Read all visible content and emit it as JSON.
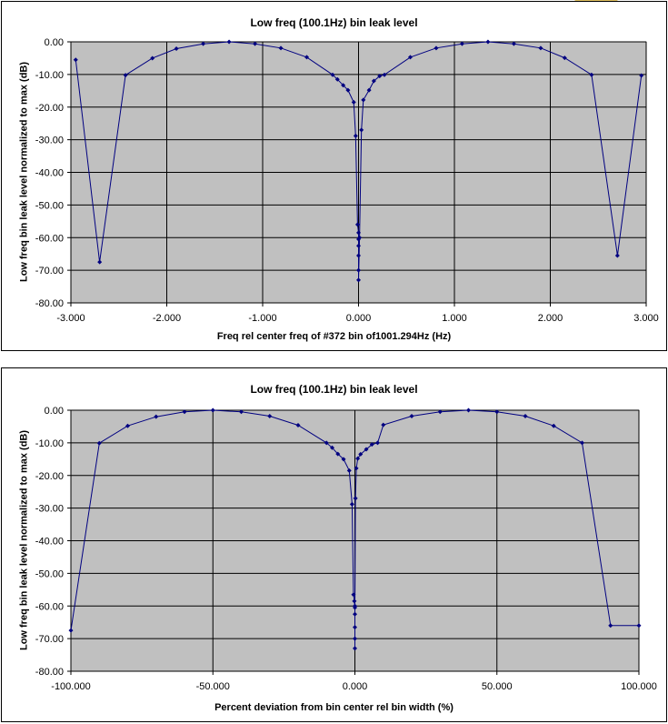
{
  "chart_data": [
    {
      "type": "line",
      "title": "Low freq (100.1Hz) bin leak level",
      "xlabel": "Freq rel center freq of #372 bin of1001.294Hz (Hz)",
      "ylabel": "Low freq bin leak level normalized to max (dB)",
      "xlim": [
        -3.0,
        3.0
      ],
      "ylim": [
        -80,
        0
      ],
      "xticks": [
        "-3.000",
        "-2.000",
        "-1.000",
        "0.000",
        "1.000",
        "2.000",
        "3.000"
      ],
      "yticks": [
        "0.00",
        "-10.00",
        "-20.00",
        "-30.00",
        "-40.00",
        "-50.00",
        "-60.00",
        "-70.00",
        "-80.00"
      ],
      "grid": true,
      "plot_background": "#c0c0c0",
      "line_color": "#000080",
      "series": [
        {
          "x": [
            -2.95,
            -2.7,
            -2.43,
            -2.15,
            -1.9,
            -1.62,
            -1.35,
            -1.08,
            -0.81,
            -0.54,
            -0.27,
            -0.22,
            -0.16,
            -0.11,
            -0.05,
            -0.03,
            -0.01,
            0.0,
            0.0,
            0.0,
            0.0,
            0.0,
            0.0,
            0.01,
            0.03,
            0.05,
            0.11,
            0.16,
            0.22,
            0.27,
            0.54,
            0.81,
            1.08,
            1.35,
            1.62,
            1.9,
            2.15,
            2.43,
            2.7,
            2.95
          ],
          "y": [
            -5.5,
            -67.5,
            -10.2,
            -5.0,
            -2.1,
            -0.6,
            0.0,
            -0.6,
            -1.9,
            -4.7,
            -10.1,
            -11.5,
            -13.3,
            -14.8,
            -18.5,
            -28.8,
            -56.0,
            -58.5,
            -60.5,
            -62.5,
            -65.5,
            -70.0,
            -73.0,
            -60.0,
            -27.0,
            -17.8,
            -14.8,
            -12.0,
            -10.5,
            -10.1,
            -4.7,
            -1.9,
            -0.6,
            0.0,
            -0.6,
            -1.9,
            -4.9,
            -10.1,
            -65.5,
            -10.3
          ]
        }
      ]
    },
    {
      "type": "line",
      "title": "Low freq (100.1Hz) bin leak level",
      "xlabel": "Percent deviation from bin center rel bin width (%)",
      "ylabel": "Low freq bin leak level normalized to max (dB)",
      "xlim": [
        -100,
        100
      ],
      "ylim": [
        -80,
        0
      ],
      "xticks": [
        "-100.000",
        "-50.000",
        "0.000",
        "50.000",
        "100.000"
      ],
      "yticks": [
        "0.00",
        "-10.00",
        "-20.00",
        "-30.00",
        "-40.00",
        "-50.00",
        "-60.00",
        "-70.00",
        "-80.00"
      ],
      "grid": true,
      "plot_background": "#c0c0c0",
      "line_color": "#000080",
      "series": [
        {
          "x": [
            -100,
            -90,
            -80,
            -70,
            -60,
            -50,
            -40,
            -30,
            -20,
            -10,
            -8,
            -6,
            -4,
            -2,
            -1,
            -0.5,
            -0.2,
            0,
            0,
            0,
            0,
            0,
            0,
            0.2,
            0.5,
            1,
            2,
            4,
            6,
            8,
            10,
            20,
            30,
            40,
            50,
            60,
            70,
            80,
            90,
            100
          ],
          "y": [
            -67.5,
            -10.1,
            -4.8,
            -2.0,
            -0.5,
            0.0,
            -0.5,
            -1.8,
            -4.6,
            -10.0,
            -11.5,
            -13.4,
            -15.0,
            -18.5,
            -28.8,
            -56.5,
            -58.5,
            -60.5,
            -62.5,
            -66.5,
            -70.0,
            -73.0,
            -60.0,
            -27.0,
            -17.8,
            -14.8,
            -13.5,
            -12.0,
            -10.5,
            -10.0,
            -4.5,
            -1.8,
            -0.5,
            0.0,
            -0.5,
            -1.8,
            -4.8,
            -10.0,
            -66.0,
            -66.0
          ]
        }
      ]
    }
  ]
}
